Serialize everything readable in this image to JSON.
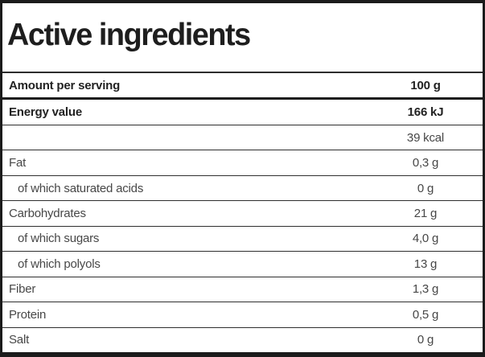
{
  "table": {
    "title": "Active ingredients",
    "rows": [
      {
        "label": "Amount per serving",
        "value": "100 g",
        "bold": true,
        "indent": false,
        "divider_after": "thick"
      },
      {
        "label": "Energy value",
        "value": "166 kJ",
        "bold": true,
        "indent": false,
        "divider_after": "thin"
      },
      {
        "label": "",
        "value": "39 kcal",
        "bold": false,
        "indent": false,
        "divider_after": "thin"
      },
      {
        "label": "Fat",
        "value": "0,3 g",
        "bold": false,
        "indent": false,
        "divider_after": "thin"
      },
      {
        "label": "of which saturated acids",
        "value": "0 g",
        "bold": false,
        "indent": true,
        "divider_after": "thin"
      },
      {
        "label": "Carbohydrates",
        "value": "21 g",
        "bold": false,
        "indent": false,
        "divider_after": "thin"
      },
      {
        "label": "of which sugars",
        "value": "4,0 g",
        "bold": false,
        "indent": true,
        "divider_after": "thin"
      },
      {
        "label": "of which polyols",
        "value": "13 g",
        "bold": false,
        "indent": true,
        "divider_after": "thin"
      },
      {
        "label": "Fiber",
        "value": "1,3 g",
        "bold": false,
        "indent": false,
        "divider_after": "thin"
      },
      {
        "label": "Protein",
        "value": "0,5 g",
        "bold": false,
        "indent": false,
        "divider_after": "thin"
      },
      {
        "label": "Salt",
        "value": "0 g",
        "bold": false,
        "indent": false,
        "divider_after": "none"
      }
    ],
    "colors": {
      "outer_border": "#1b1b1b",
      "thin_divider": "#2f2f2f",
      "bold_text": "#222222",
      "regular_text": "#474747",
      "background": "#ffffff"
    }
  }
}
